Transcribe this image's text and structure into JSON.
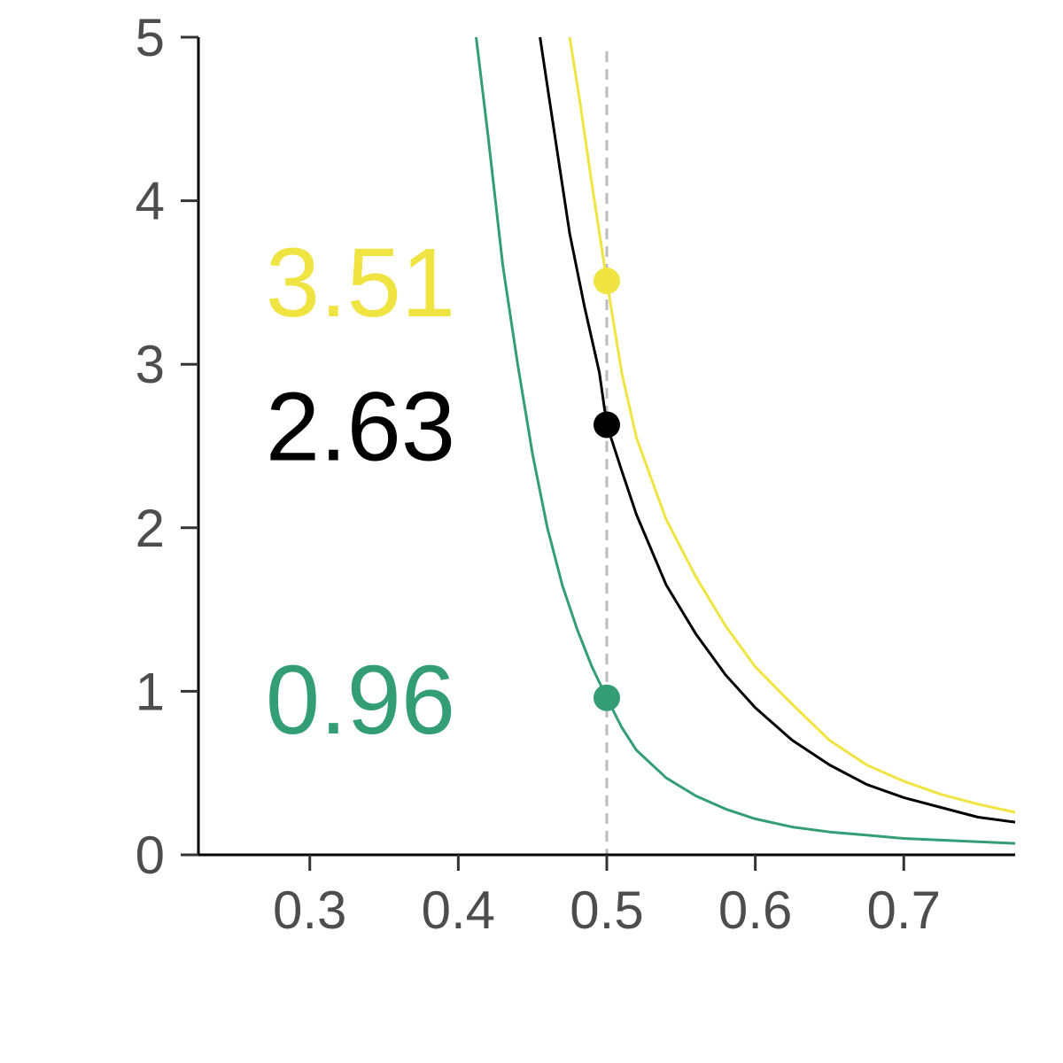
{
  "chart_data": {
    "type": "line",
    "title": "",
    "xlabel": "",
    "ylabel": "",
    "xlim": [
      0.225,
      0.775
    ],
    "ylim": [
      0,
      5
    ],
    "grid": false,
    "legend": "none",
    "x_ticks": [
      0.3,
      0.4,
      0.5,
      0.6,
      0.7
    ],
    "x_tick_labels": [
      "0.3",
      "0.4",
      "0.5",
      "0.6",
      "0.7"
    ],
    "y_ticks": [
      0,
      1,
      2,
      3,
      4,
      5
    ],
    "y_tick_labels": [
      "0",
      "1",
      "2",
      "3",
      "4",
      "5"
    ],
    "reference_line": {
      "x": 0.5,
      "style": "dashed",
      "color": "#bdbdbd"
    },
    "series": [
      {
        "color": "#f0e442",
        "x": [
          0.475,
          0.482,
          0.49,
          0.5,
          0.51,
          0.52,
          0.54,
          0.56,
          0.58,
          0.6,
          0.625,
          0.65,
          0.675,
          0.7,
          0.725,
          0.75,
          0.775
        ],
        "y": [
          5.0,
          4.6,
          4.1,
          3.51,
          2.95,
          2.55,
          2.05,
          1.7,
          1.4,
          1.15,
          0.92,
          0.7,
          0.55,
          0.45,
          0.37,
          0.31,
          0.26
        ]
      },
      {
        "color": "#000000",
        "x": [
          0.455,
          0.465,
          0.475,
          0.485,
          0.495,
          0.5,
          0.51,
          0.52,
          0.54,
          0.56,
          0.58,
          0.6,
          0.625,
          0.65,
          0.675,
          0.7,
          0.725,
          0.75,
          0.775
        ],
        "y": [
          5.0,
          4.4,
          3.8,
          3.35,
          2.95,
          2.63,
          2.35,
          2.08,
          1.65,
          1.35,
          1.1,
          0.9,
          0.7,
          0.55,
          0.43,
          0.35,
          0.29,
          0.23,
          0.2
        ]
      },
      {
        "color": "#339e75",
        "x": [
          0.412,
          0.42,
          0.43,
          0.44,
          0.45,
          0.46,
          0.47,
          0.48,
          0.49,
          0.5,
          0.51,
          0.52,
          0.54,
          0.56,
          0.58,
          0.6,
          0.625,
          0.65,
          0.675,
          0.7,
          0.725,
          0.75,
          0.775
        ],
        "y": [
          5.0,
          4.4,
          3.6,
          3.0,
          2.45,
          2.0,
          1.65,
          1.38,
          1.15,
          0.96,
          0.78,
          0.64,
          0.47,
          0.36,
          0.28,
          0.22,
          0.17,
          0.14,
          0.12,
          0.1,
          0.09,
          0.08,
          0.07
        ]
      }
    ],
    "highlight_points": [
      {
        "x": 0.5,
        "y": 3.51,
        "label": "3.51",
        "color": "#f0e442"
      },
      {
        "x": 0.5,
        "y": 2.63,
        "label": "2.63",
        "color": "#000000"
      },
      {
        "x": 0.5,
        "y": 0.96,
        "label": "0.96",
        "color": "#339e75"
      }
    ]
  }
}
